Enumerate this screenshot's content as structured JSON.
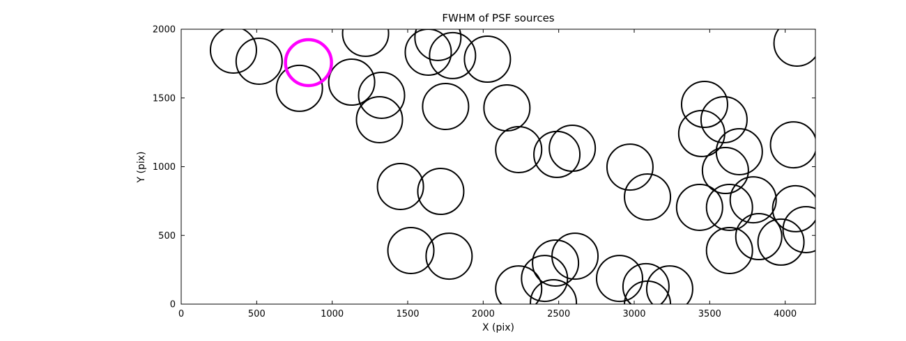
{
  "figure": {
    "background": "#ffffff",
    "axis_color": "#000000"
  },
  "chart_data": {
    "type": "scatter",
    "title": "FWHM of PSF sources",
    "xlabel": "X (pix)",
    "ylabel": "Y (pix)",
    "xlim": [
      0,
      4200
    ],
    "ylim": [
      0,
      2000
    ],
    "xticks": [
      0,
      500,
      1000,
      1500,
      2000,
      2500,
      3000,
      3500,
      4000
    ],
    "yticks": [
      0,
      500,
      1000,
      1500,
      2000
    ],
    "grid": false,
    "marker": {
      "shape": "circle",
      "radius_px": 33,
      "fill": "none",
      "stroke": "#000000",
      "stroke_width": 2
    },
    "highlight_marker": {
      "shape": "circle",
      "radius_px": 33,
      "fill": "none",
      "stroke": "#ff00ff",
      "stroke_width": 4.5
    },
    "sources": [
      [
        346,
        1848
      ],
      [
        516,
        1767
      ],
      [
        1221,
        1970
      ],
      [
        1636,
        1833
      ],
      [
        1700,
        1940
      ],
      [
        1797,
        1808
      ],
      [
        2028,
        1782
      ],
      [
        783,
        1570
      ],
      [
        1129,
        1615
      ],
      [
        1327,
        1519
      ],
      [
        1313,
        1342
      ],
      [
        1751,
        1438
      ],
      [
        2157,
        1428
      ],
      [
        2235,
        1124
      ],
      [
        2488,
        1089
      ],
      [
        2590,
        1134
      ],
      [
        2972,
        997
      ],
      [
        3088,
        780
      ],
      [
        3466,
        1453
      ],
      [
        3595,
        1342
      ],
      [
        3447,
        1241
      ],
      [
        3696,
        1109
      ],
      [
        3604,
        972
      ],
      [
        4055,
        1159
      ],
      [
        1452,
        856
      ],
      [
        1719,
        820
      ],
      [
        3433,
        704
      ],
      [
        3631,
        704
      ],
      [
        3788,
        759
      ],
      [
        4069,
        694
      ],
      [
        4138,
        542
      ],
      [
        1521,
        390
      ],
      [
        1774,
        349
      ],
      [
        2479,
        299
      ],
      [
        2608,
        349
      ],
      [
        3631,
        390
      ],
      [
        3825,
        491
      ],
      [
        3972,
        451
      ],
      [
        2235,
        111
      ],
      [
        2406,
        187
      ],
      [
        2903,
        187
      ],
      [
        3078,
        127
      ],
      [
        3235,
        111
      ],
      [
        2465,
        10
      ],
      [
        3088,
        0
      ],
      [
        4078,
        1899
      ]
    ],
    "highlighted_source": {
      "x": 843,
      "y": 1757
    }
  }
}
